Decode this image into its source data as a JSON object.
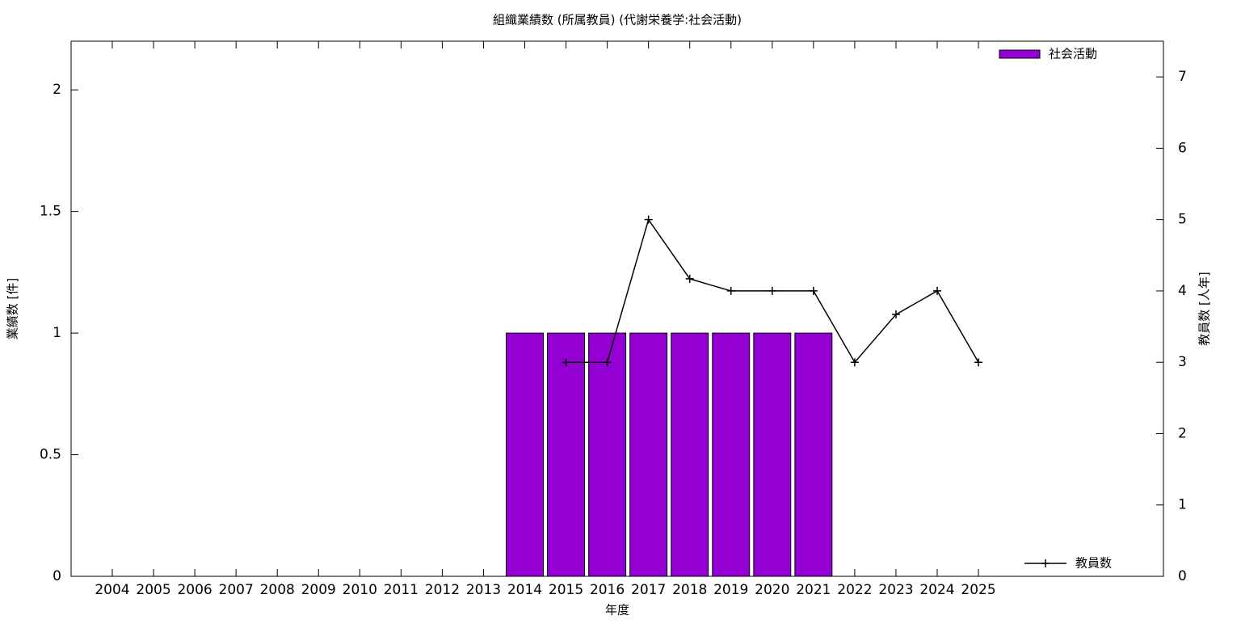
{
  "chart_data": {
    "type": "bar",
    "title": "組織業績数 (所属教員) (代謝栄養学:社会活動)",
    "x_label": "年度",
    "y_label": "業績数 [件]",
    "y2_label": "教員数 [人年]",
    "categories": [
      "2004",
      "2005",
      "2006",
      "2007",
      "2008",
      "2009",
      "2010",
      "2011",
      "2012",
      "2013",
      "2014",
      "2015",
      "2016",
      "2017",
      "2018",
      "2019",
      "2020",
      "2021",
      "2022",
      "2023",
      "2024",
      "2025"
    ],
    "series": [
      {
        "name": "社会活動",
        "type": "bar",
        "color": "#9400d3",
        "legend": "top-right",
        "values": [
          0,
          0,
          0,
          0,
          0,
          0,
          0,
          0,
          0,
          0,
          1,
          1,
          1,
          1,
          1,
          1,
          1,
          1,
          0,
          0,
          0,
          0
        ]
      },
      {
        "name": "教員数",
        "type": "line",
        "color": "#000000",
        "axis": "y2",
        "legend": "bottom-right",
        "values": [
          null,
          null,
          null,
          null,
          null,
          null,
          null,
          null,
          null,
          null,
          null,
          3,
          3,
          5,
          4.17,
          4,
          4,
          4,
          3,
          3.67,
          4,
          3
        ]
      }
    ],
    "ylim": [
      0,
      2.2
    ],
    "yticks": [
      0,
      0.5,
      1,
      1.5,
      2
    ],
    "y2lim": [
      0,
      7.5
    ],
    "y2ticks": [
      0,
      1,
      2,
      3,
      4,
      5,
      6,
      7
    ]
  }
}
